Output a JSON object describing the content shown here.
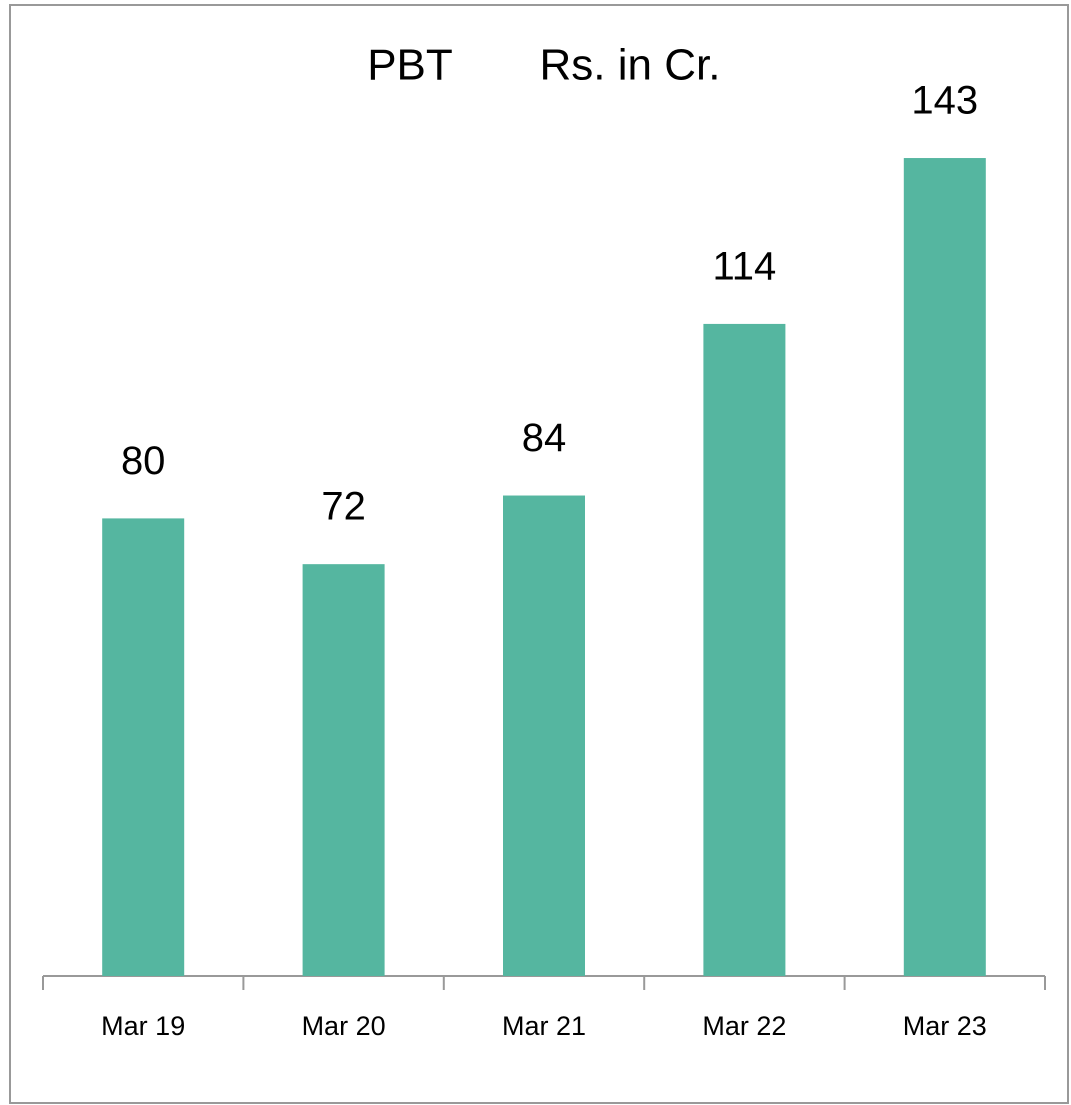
{
  "chart_data": {
    "type": "bar",
    "title": "PBT",
    "subtitle": "Rs. in Cr.",
    "categories": [
      "Mar 19",
      "Mar 20",
      "Mar 21",
      "Mar 22",
      "Mar 23"
    ],
    "values": [
      80,
      72,
      84,
      114,
      143
    ],
    "color": "#55b6a0"
  }
}
